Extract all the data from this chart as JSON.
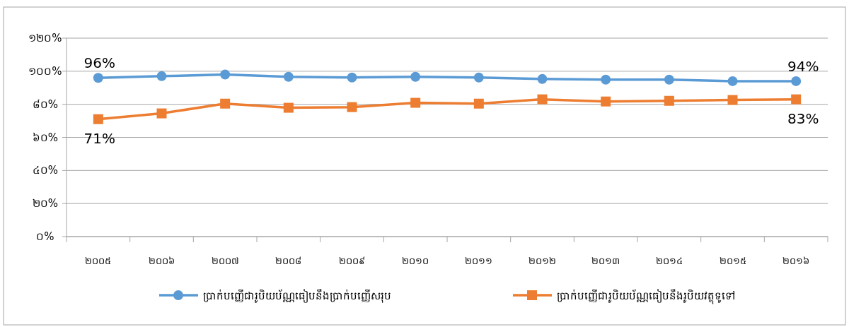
{
  "chart_data": {
    "type": "line",
    "categories": [
      "២០០៥",
      "២០០៦",
      "២០០៧",
      "២០០៨",
      "២០០៩",
      "២០១០",
      "២០១១",
      "២០១២",
      "២០១៣",
      "២០១៤",
      "២០១៥",
      "២០១៦"
    ],
    "ylim": [
      0,
      120
    ],
    "yticks": [
      {
        "value": 0,
        "label": "០%"
      },
      {
        "value": 20,
        "label": "២០%"
      },
      {
        "value": 40,
        "label": "៤០%"
      },
      {
        "value": 60,
        "label": "៦០%"
      },
      {
        "value": 80,
        "label": "៨០%"
      },
      {
        "value": 100,
        "label": "១០០%"
      },
      {
        "value": 120,
        "label": "១២០%"
      }
    ],
    "grid": "y",
    "legend": "bottom",
    "series": [
      {
        "name": "ប្រាក់បញ្ញើជារូបិយប័ណ្ណធៀបនឹងប្រាក់បញ្ញើសរុប",
        "color": "#5b9bd5",
        "marker": "circle",
        "values": [
          96,
          97,
          98,
          96.6,
          96.2,
          96.6,
          96.2,
          95.3,
          94.9,
          94.9,
          94,
          94
        ],
        "value_labels": [
          "96%",
          null,
          null,
          null,
          null,
          null,
          null,
          null,
          null,
          null,
          null,
          "94%"
        ]
      },
      {
        "name": "ប្រាក់បញ្ញើជារូបិយប័ណ្ណធៀបនឹងរូបិយវត្ថុទូទៅ",
        "color": "#ed7d31",
        "marker": "square",
        "values": [
          71,
          74.5,
          80.4,
          77.9,
          78.3,
          80.9,
          80.4,
          83,
          81.7,
          82.1,
          82.6,
          83
        ],
        "value_labels": [
          "71%",
          null,
          null,
          null,
          null,
          null,
          null,
          null,
          null,
          null,
          null,
          "83%"
        ]
      }
    ]
  }
}
